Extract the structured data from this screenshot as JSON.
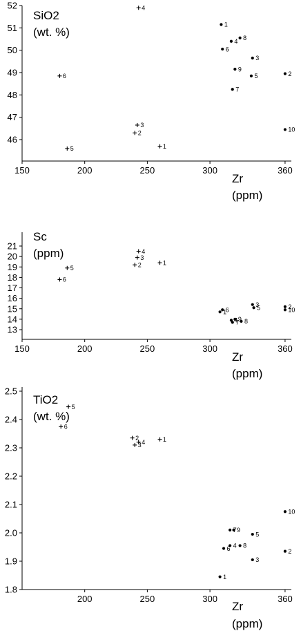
{
  "chart_data": [
    {
      "type": "scatter",
      "title": "SiO2",
      "title_unit": "(wt. %)",
      "xlabel": "Zr",
      "xlabel_unit": "(ppm)",
      "xlim": [
        150,
        365
      ],
      "ylim": [
        45.1,
        52
      ],
      "xticks": [
        150,
        200,
        250,
        300,
        360
      ],
      "yticks": [
        46,
        47,
        48,
        49,
        50,
        51,
        52
      ],
      "series": [
        {
          "marker": "plus",
          "points": [
            {
              "label": "1",
              "x": 260,
              "y": 45.7
            },
            {
              "label": "2",
              "x": 240,
              "y": 46.3
            },
            {
              "label": "3",
              "x": 242,
              "y": 46.65
            },
            {
              "label": "4",
              "x": 243,
              "y": 51.9
            },
            {
              "label": "5",
              "x": 186,
              "y": 45.6
            },
            {
              "label": "6",
              "x": 180,
              "y": 48.85
            }
          ]
        },
        {
          "marker": "dot",
          "points": [
            {
              "label": "1",
              "x": 309,
              "y": 51.15
            },
            {
              "label": "2",
              "x": 360,
              "y": 48.95
            },
            {
              "label": "3",
              "x": 334,
              "y": 49.65
            },
            {
              "label": "4",
              "x": 317,
              "y": 50.4
            },
            {
              "label": "5",
              "x": 333,
              "y": 48.85
            },
            {
              "label": "6",
              "x": 310,
              "y": 50.05
            },
            {
              "label": "7",
              "x": 318,
              "y": 48.25
            },
            {
              "label": "8",
              "x": 324,
              "y": 50.55
            },
            {
              "label": "9",
              "x": 320,
              "y": 49.15
            },
            {
              "label": "10",
              "x": 360,
              "y": 46.45
            }
          ]
        }
      ]
    },
    {
      "type": "scatter",
      "title": "Sc",
      "title_unit": "(ppm)",
      "xlabel": "Zr",
      "xlabel_unit": "(ppm)",
      "xlim": [
        150,
        365
      ],
      "ylim": [
        12.5,
        21.9
      ],
      "xticks": [
        150,
        200,
        250,
        300,
        360
      ],
      "yticks": [
        13,
        14,
        15,
        16,
        17,
        18,
        19,
        20,
        21
      ],
      "series": [
        {
          "marker": "plus",
          "points": [
            {
              "label": "1",
              "x": 260,
              "y": 19.4
            },
            {
              "label": "2",
              "x": 240,
              "y": 19.2
            },
            {
              "label": "3",
              "x": 242,
              "y": 19.9
            },
            {
              "label": "4",
              "x": 243,
              "y": 20.5
            },
            {
              "label": "5",
              "x": 186,
              "y": 18.9
            },
            {
              "label": "6",
              "x": 180,
              "y": 17.8
            }
          ]
        },
        {
          "marker": "dot",
          "points": [
            {
              "label": "1",
              "x": 308,
              "y": 14.7
            },
            {
              "label": "2",
              "x": 360,
              "y": 15.2
            },
            {
              "label": "3",
              "x": 334,
              "y": 15.4
            },
            {
              "label": "4",
              "x": 317,
              "y": 13.9
            },
            {
              "label": "5",
              "x": 335,
              "y": 15.1
            },
            {
              "label": "6",
              "x": 310,
              "y": 14.9
            },
            {
              "label": "7",
              "x": 318,
              "y": 13.7
            },
            {
              "label": "8",
              "x": 325,
              "y": 13.8
            },
            {
              "label": "9",
              "x": 320,
              "y": 14.0
            },
            {
              "label": "10",
              "x": 360,
              "y": 14.9
            }
          ]
        }
      ]
    },
    {
      "type": "scatter",
      "title": "TiO2",
      "title_unit": "(wt. %)",
      "xlabel": "Zr",
      "xlabel_unit": "(ppm)",
      "xlim": [
        150,
        365
      ],
      "ylim": [
        1.8,
        2.62
      ],
      "xticks": [
        200,
        250,
        300,
        360
      ],
      "yticks": [
        1.8,
        1.9,
        2.0,
        2.1,
        2.2,
        2.3,
        2.4,
        2.5
      ],
      "series": [
        {
          "marker": "plus",
          "points": [
            {
              "label": "1",
              "x": 260,
              "y": 2.33
            },
            {
              "label": "2",
              "x": 238,
              "y": 2.335
            },
            {
              "label": "3",
              "x": 240,
              "y": 2.31
            },
            {
              "label": "4",
              "x": 243,
              "y": 2.32
            },
            {
              "label": "5",
              "x": 187,
              "y": 2.445
            },
            {
              "label": "6",
              "x": 181,
              "y": 2.375
            }
          ]
        },
        {
          "marker": "dot",
          "points": [
            {
              "label": "1",
              "x": 308,
              "y": 1.845
            },
            {
              "label": "2",
              "x": 360,
              "y": 1.935
            },
            {
              "label": "3",
              "x": 334,
              "y": 1.905
            },
            {
              "label": "4",
              "x": 316,
              "y": 1.955
            },
            {
              "label": "5",
              "x": 334,
              "y": 1.995
            },
            {
              "label": "6",
              "x": 311,
              "y": 1.945
            },
            {
              "label": "7",
              "x": 316,
              "y": 2.01
            },
            {
              "label": "8",
              "x": 324,
              "y": 1.955
            },
            {
              "label": "9",
              "x": 319,
              "y": 2.01
            },
            {
              "label": "10",
              "x": 360,
              "y": 2.075
            }
          ]
        }
      ]
    }
  ]
}
